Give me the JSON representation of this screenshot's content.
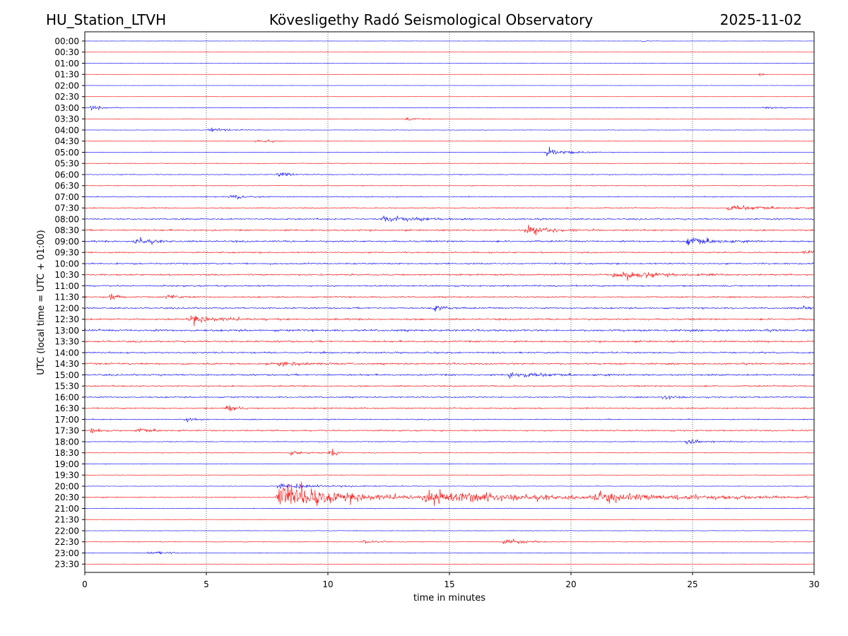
{
  "header": {
    "station": "HU_Station_LTVH",
    "observatory": "Kövesligethy Radó Seismological Observatory",
    "date": "2025-11-02"
  },
  "chart_data": {
    "type": "line",
    "title": "Kövesligethy Radó Seismological Observatory",
    "xlabel": "time in minutes",
    "ylabel": "UTC (local time = UTC + 01:00)",
    "xlim": [
      0,
      30
    ],
    "x_ticks": [
      "0",
      "5",
      "10",
      "15",
      "20",
      "25",
      "30"
    ],
    "x_tick_values": [
      0,
      5,
      10,
      15,
      20,
      25,
      30
    ],
    "grid": "vertical dotted lines at x ticks",
    "colors": {
      "even_rows": "#0000ff",
      "odd_rows": "#ff0000"
    },
    "rows": [
      {
        "label": "00:00",
        "noise": 0.15,
        "events": [
          {
            "t": 23.0,
            "amp": 1.5,
            "dur": 0.2
          }
        ]
      },
      {
        "label": "00:30",
        "noise": 0.12,
        "events": []
      },
      {
        "label": "01:00",
        "noise": 0.15,
        "events": []
      },
      {
        "label": "01:30",
        "noise": 0.12,
        "events": [
          {
            "t": 27.8,
            "amp": 2.0,
            "dur": 0.1
          }
        ]
      },
      {
        "label": "02:00",
        "noise": 0.15,
        "events": []
      },
      {
        "label": "02:30",
        "noise": 0.15,
        "events": []
      },
      {
        "label": "03:00",
        "noise": 0.3,
        "events": [
          {
            "t": 0.3,
            "amp": 3.0,
            "dur": 0.6
          },
          {
            "t": 28.0,
            "amp": 2.0,
            "dur": 0.6
          }
        ]
      },
      {
        "label": "03:30",
        "noise": 0.25,
        "events": [
          {
            "t": 13.3,
            "amp": 2.0,
            "dur": 0.5
          }
        ]
      },
      {
        "label": "04:00",
        "noise": 0.3,
        "events": [
          {
            "t": 5.2,
            "amp": 3.0,
            "dur": 0.8
          }
        ]
      },
      {
        "label": "04:30",
        "noise": 0.3,
        "events": [
          {
            "t": 7.1,
            "amp": 2.0,
            "dur": 0.6
          }
        ]
      },
      {
        "label": "05:00",
        "noise": 0.35,
        "events": [
          {
            "t": 19.0,
            "amp": 3.5,
            "dur": 1.0
          }
        ]
      },
      {
        "label": "05:30",
        "noise": 0.45,
        "events": []
      },
      {
        "label": "06:00",
        "noise": 0.5,
        "events": [
          {
            "t": 8.0,
            "amp": 2.5,
            "dur": 0.6
          }
        ]
      },
      {
        "label": "06:30",
        "noise": 0.5,
        "events": []
      },
      {
        "label": "07:00",
        "noise": 0.6,
        "events": [
          {
            "t": 6.0,
            "amp": 2.5,
            "dur": 0.6
          }
        ]
      },
      {
        "label": "07:30",
        "noise": 0.6,
        "events": [
          {
            "t": 26.5,
            "amp": 3.0,
            "dur": 2.0
          }
        ]
      },
      {
        "label": "08:00",
        "noise": 0.9,
        "events": [
          {
            "t": 12.3,
            "amp": 4.0,
            "dur": 1.2
          }
        ]
      },
      {
        "label": "08:30",
        "noise": 0.9,
        "events": [
          {
            "t": 18.2,
            "amp": 5.0,
            "dur": 1.0
          }
        ]
      },
      {
        "label": "09:00",
        "noise": 1.0,
        "events": [
          {
            "t": 2.1,
            "amp": 5.0,
            "dur": 0.6
          },
          {
            "t": 24.8,
            "amp": 6.0,
            "dur": 1.0
          }
        ]
      },
      {
        "label": "09:30",
        "noise": 0.8,
        "events": [
          {
            "t": 29.5,
            "amp": 3.0,
            "dur": 0.6
          }
        ]
      },
      {
        "label": "10:00",
        "noise": 0.9,
        "events": []
      },
      {
        "label": "10:30",
        "noise": 0.9,
        "events": [
          {
            "t": 21.8,
            "amp": 6.0,
            "dur": 1.5
          }
        ]
      },
      {
        "label": "11:00",
        "noise": 0.9,
        "events": []
      },
      {
        "label": "11:30",
        "noise": 0.8,
        "events": [
          {
            "t": 1.1,
            "amp": 7.0,
            "dur": 0.2
          },
          {
            "t": 3.4,
            "amp": 3.0,
            "dur": 0.4
          }
        ]
      },
      {
        "label": "12:00",
        "noise": 0.9,
        "events": [
          {
            "t": 14.4,
            "amp": 3.5,
            "dur": 0.5
          },
          {
            "t": 29.6,
            "amp": 3.0,
            "dur": 0.4
          }
        ]
      },
      {
        "label": "12:30",
        "noise": 1.0,
        "events": [
          {
            "t": 4.4,
            "amp": 5.0,
            "dur": 1.2
          }
        ]
      },
      {
        "label": "13:00",
        "noise": 1.2,
        "events": []
      },
      {
        "label": "13:30",
        "noise": 1.0,
        "events": []
      },
      {
        "label": "14:00",
        "noise": 0.9,
        "events": []
      },
      {
        "label": "14:30",
        "noise": 1.0,
        "events": [
          {
            "t": 8.0,
            "amp": 3.0,
            "dur": 1.0
          }
        ]
      },
      {
        "label": "15:00",
        "noise": 1.0,
        "events": [
          {
            "t": 17.5,
            "amp": 3.0,
            "dur": 1.5
          }
        ]
      },
      {
        "label": "15:30",
        "noise": 0.8,
        "events": []
      },
      {
        "label": "16:00",
        "noise": 0.8,
        "events": [
          {
            "t": 23.8,
            "amp": 3.0,
            "dur": 0.4
          }
        ]
      },
      {
        "label": "16:30",
        "noise": 0.8,
        "events": [
          {
            "t": 5.9,
            "amp": 5.0,
            "dur": 0.3
          }
        ]
      },
      {
        "label": "17:00",
        "noise": 0.6,
        "events": [
          {
            "t": 4.2,
            "amp": 2.5,
            "dur": 0.3
          }
        ]
      },
      {
        "label": "17:30",
        "noise": 0.8,
        "events": [
          {
            "t": 0.3,
            "amp": 3.5,
            "dur": 0.4
          },
          {
            "t": 2.2,
            "amp": 3.0,
            "dur": 0.6
          }
        ]
      },
      {
        "label": "18:00",
        "noise": 0.5,
        "events": [
          {
            "t": 24.8,
            "amp": 3.0,
            "dur": 0.8
          }
        ]
      },
      {
        "label": "18:30",
        "noise": 0.4,
        "events": [
          {
            "t": 10.15,
            "amp": 7.0,
            "dur": 0.2
          },
          {
            "t": 8.5,
            "amp": 2.0,
            "dur": 0.8
          }
        ]
      },
      {
        "label": "19:00",
        "noise": 0.35,
        "events": []
      },
      {
        "label": "19:30",
        "noise": 0.35,
        "events": []
      },
      {
        "label": "20:00",
        "noise": 0.35,
        "events": [
          {
            "t": 8.0,
            "amp": 3.0,
            "dur": 2.0
          }
        ]
      },
      {
        "label": "20:30",
        "noise": 0.6,
        "events": [
          {
            "t": 8.0,
            "amp": 18.0,
            "dur": 2.5
          },
          {
            "t": 14.0,
            "amp": 7.0,
            "dur": 5.0
          },
          {
            "t": 21.0,
            "amp": 4.0,
            "dur": 5.0
          }
        ]
      },
      {
        "label": "21:00",
        "noise": 0.4,
        "events": []
      },
      {
        "label": "21:30",
        "noise": 0.3,
        "events": []
      },
      {
        "label": "22:00",
        "noise": 0.35,
        "events": []
      },
      {
        "label": "22:30",
        "noise": 0.4,
        "events": [
          {
            "t": 17.3,
            "amp": 3.5,
            "dur": 0.8
          },
          {
            "t": 11.5,
            "amp": 2.0,
            "dur": 0.6
          }
        ]
      },
      {
        "label": "23:00",
        "noise": 0.35,
        "events": [
          {
            "t": 2.7,
            "amp": 2.5,
            "dur": 0.6
          }
        ]
      },
      {
        "label": "23:30",
        "noise": 0.25,
        "events": []
      }
    ]
  }
}
